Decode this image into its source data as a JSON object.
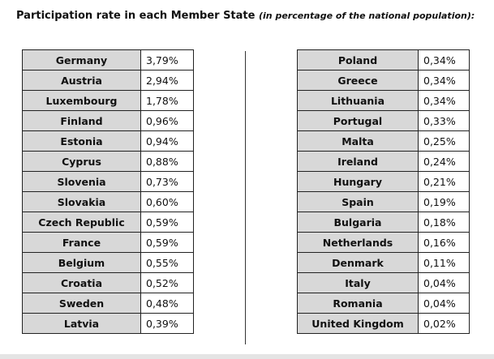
{
  "header": {
    "title": "Participation rate in each Member State",
    "subtitle": "(in percentage of the national population):"
  },
  "tables": [
    {
      "rows": [
        [
          "Germany",
          "3,79%"
        ],
        [
          "Austria",
          "2,94%"
        ],
        [
          "Luxembourg",
          "1,78%"
        ],
        [
          "Finland",
          "0,96%"
        ],
        [
          "Estonia",
          "0,94%"
        ],
        [
          "Cyprus",
          "0,88%"
        ],
        [
          "Slovenia",
          "0,73%"
        ],
        [
          "Slovakia",
          "0,60%"
        ],
        [
          "Czech Republic",
          "0,59%"
        ],
        [
          "France",
          "0,59%"
        ],
        [
          "Belgium",
          "0,55%"
        ],
        [
          "Croatia",
          "0,52%"
        ],
        [
          "Sweden",
          "0,48%"
        ],
        [
          "Latvia",
          "0,39%"
        ]
      ]
    },
    {
      "rows": [
        [
          "Poland",
          "0,34%"
        ],
        [
          "Greece",
          "0,34%"
        ],
        [
          "Lithuania",
          "0,34%"
        ],
        [
          "Portugal",
          "0,33%"
        ],
        [
          "Malta",
          "0,25%"
        ],
        [
          "Ireland",
          "0,24%"
        ],
        [
          "Hungary",
          "0,21%"
        ],
        [
          "Spain",
          "0,19%"
        ],
        [
          "Bulgaria",
          "0,18%"
        ],
        [
          "Netherlands",
          "0,16%"
        ],
        [
          "Denmark",
          "0,11%"
        ],
        [
          "Italy",
          "0,04%"
        ],
        [
          "Romania",
          "0,04%"
        ],
        [
          "United Kingdom",
          "0,02%"
        ]
      ]
    }
  ]
}
